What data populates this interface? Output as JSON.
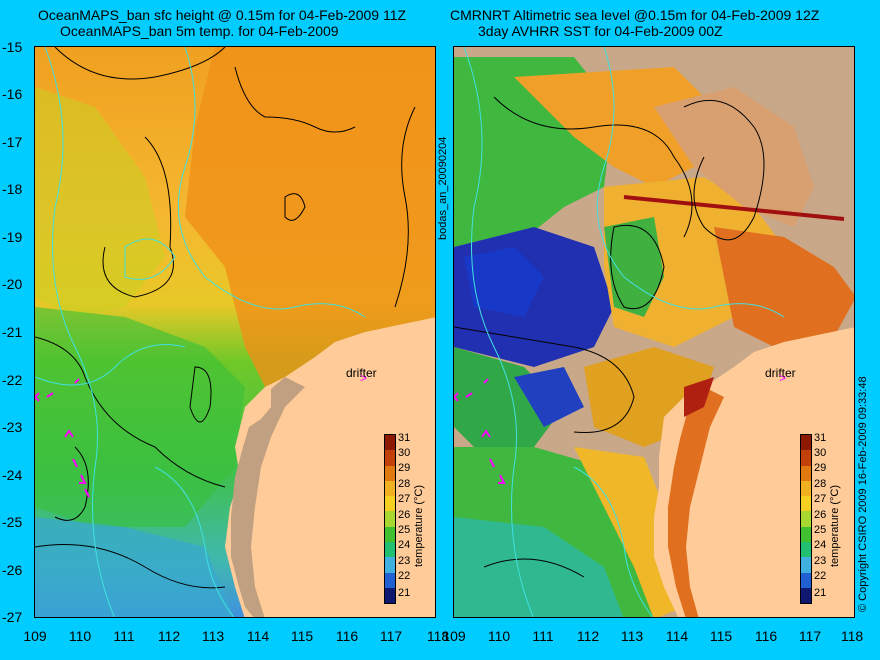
{
  "titles": {
    "left_line1": "OceanMAPS_ban sfc height @ 0.15m for 04-Feb-2009 11Z",
    "left_line2": "OceanMAPS_ban 5m temp. for 04-Feb-2009",
    "right_line1": "CMRNRT Altimetric sea level  @0.15m  for 04-Feb-2009 12Z",
    "right_line2": "3day AVHRR SST for 04-Feb-2009 00Z"
  },
  "y_axis_ticks": [
    "-15",
    "-16",
    "-17",
    "-18",
    "-19",
    "-20",
    "-21",
    "-22",
    "-23",
    "-24",
    "-25",
    "-26",
    "-27"
  ],
  "x_axis_ticks": [
    "109",
    "110",
    "111",
    "112",
    "113",
    "114",
    "115",
    "116",
    "117",
    "118"
  ],
  "drifter_label": "drifter",
  "colorbar": {
    "labels": [
      "31",
      "30",
      "29",
      "28",
      "27",
      "26",
      "25",
      "24",
      "23",
      "22",
      "21"
    ],
    "title": "temperature (°C)",
    "colors": [
      "#8b1a00",
      "#c2400a",
      "#e07a10",
      "#f0b020",
      "#f5d020",
      "#a8d830",
      "#40c030",
      "#20c070",
      "#40b0e0",
      "#2060d0",
      "#101870"
    ]
  },
  "side_labels": {
    "bodas": "bodas_an_20090204",
    "copyright": "© Copyright CSIRO 2009   16-Feb-2009 09:33:48"
  },
  "colors": {
    "background": "#00ccff",
    "land": "#ffcc99",
    "contour": "#000000",
    "ssh_contour": "#40e0e0",
    "drifter": "#ff00ff"
  }
}
